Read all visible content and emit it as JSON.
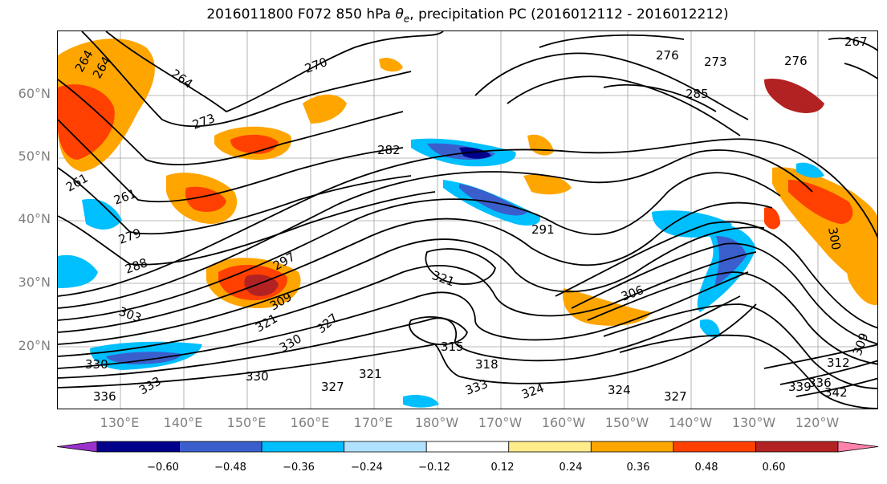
{
  "title": "2016011800 F072 850 hPa θe, precipitation PC (2016012112 - 2016012212)",
  "lat_labels": [
    "60°N",
    "50°N",
    "40°N",
    "30°N",
    "20°N"
  ],
  "lon_labels": [
    "130°E",
    "140°E",
    "150°E",
    "160°E",
    "170°E",
    "180°W",
    "170°W",
    "160°W",
    "150°W",
    "140°W",
    "130°W",
    "120°W"
  ],
  "colorbar": {
    "colors": [
      "#9933cc",
      "#00008b",
      "#3a5fcd",
      "#00bfff",
      "#b0e2ff",
      "#ffffff",
      "#ffeb8a",
      "#ffa500",
      "#ff4000",
      "#b22222",
      "#ff82ab"
    ],
    "labels": [
      "−0.60",
      "−0.48",
      "−0.36",
      "−0.24",
      "−0.12",
      "0.12",
      "0.24",
      "0.36",
      "0.48",
      "0.60"
    ]
  },
  "contour_labels": [
    "264",
    "264",
    "264",
    "270",
    "276",
    "273",
    "276",
    "267",
    "261",
    "273",
    "261",
    "279",
    "282",
    "285",
    "288",
    "291",
    "297",
    "303",
    "300",
    "309",
    "321",
    "321",
    "330",
    "327",
    "306",
    "315",
    "318",
    "330",
    "336",
    "333",
    "324",
    "324",
    "327",
    "327",
    "321",
    "330",
    "333",
    "339",
    "342",
    "336",
    "312",
    "309"
  ]
}
